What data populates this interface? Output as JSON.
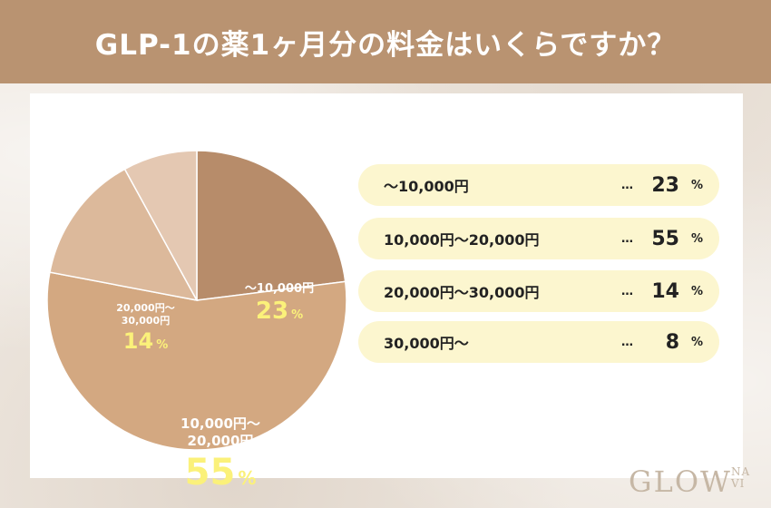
{
  "header": {
    "title": "GLP-1の薬1ヶ月分の料金はいくらですか？"
  },
  "colors": {
    "header_bg": "#b99371",
    "slice_1": "#b78c6a",
    "slice_2": "#d3a881",
    "slice_3": "#dcb99b",
    "slice_4": "#e4c8b2",
    "pct_highlight": "#fbf17a",
    "row_bg": "#fcf6cf"
  },
  "chart_data": {
    "type": "pie",
    "title": "GLP-1の薬1ヶ月分の料金はいくらですか？",
    "unit": "%",
    "categories": [
      "〜10,000円",
      "10,000円〜20,000円",
      "20,000円〜30,000円",
      "30,000円〜"
    ],
    "values": [
      23,
      55,
      14,
      8
    ],
    "pie_labels": [
      {
        "range": "〜10,000円",
        "value": "23",
        "unit": "%"
      },
      {
        "range": "10,000円〜\n20,000円",
        "value": "55",
        "unit": "%"
      },
      {
        "range": "20,000円〜\n30,000円",
        "value": "14",
        "unit": "%"
      }
    ]
  },
  "legend_rows": [
    {
      "label": "〜10,000円",
      "dots": "…",
      "value": "23",
      "unit": "%"
    },
    {
      "label": "10,000円〜20,000円",
      "dots": "…",
      "value": "55",
      "unit": "%"
    },
    {
      "label": "20,000円〜30,000円",
      "dots": "…",
      "value": "14",
      "unit": "%"
    },
    {
      "label": "30,000円〜",
      "dots": "…",
      "value": "8",
      "unit": "%"
    }
  ],
  "logo": {
    "main": "GLOW",
    "sub_top": "NA",
    "sub_bottom": "VI"
  }
}
